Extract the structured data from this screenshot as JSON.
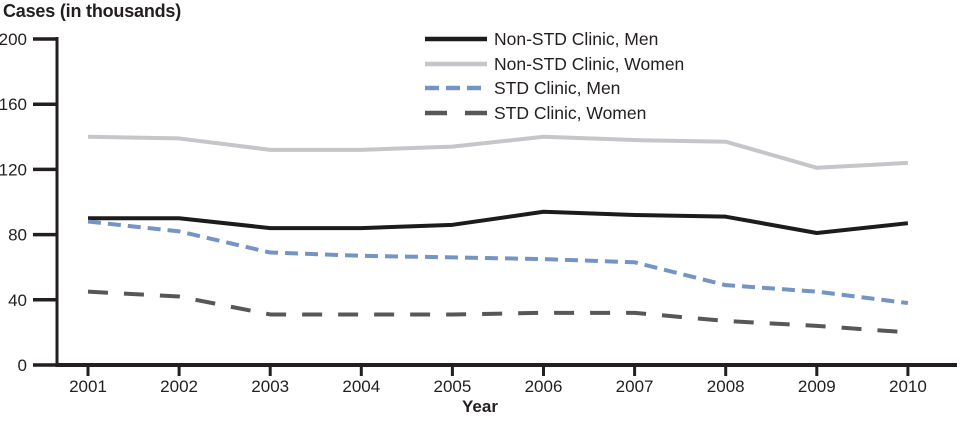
{
  "chart_data": {
    "type": "line",
    "title": "Cases (in thousands)",
    "xlabel": "Year",
    "ylabel": "Cases (in thousands)",
    "x": [
      "2001",
      "2002",
      "2003",
      "2004",
      "2005",
      "2006",
      "2007",
      "2008",
      "2009",
      "2010"
    ],
    "ylim": [
      0,
      200
    ],
    "yticks": [
      0,
      40,
      80,
      120,
      160,
      200
    ],
    "grid": false,
    "legend_position": "top-center-inside",
    "axis_color": "#231f20",
    "series": [
      {
        "name": "Non-STD Clinic, Men",
        "color": "#1c1c1e",
        "line_style": "solid",
        "values": [
          90,
          90,
          84,
          84,
          86,
          94,
          92,
          91,
          81,
          87
        ]
      },
      {
        "name": "Non-STD Clinic, Women",
        "color": "#c6c5c9",
        "line_style": "solid",
        "values": [
          140,
          139,
          132,
          132,
          134,
          140,
          138,
          137,
          121,
          124
        ]
      },
      {
        "name": "STD Clinic, Men",
        "color": "#7494c6",
        "line_style": "dashed",
        "values": [
          88,
          82,
          69,
          67,
          66,
          65,
          63,
          49,
          45,
          38
        ]
      },
      {
        "name": "STD Clinic, Women",
        "color": "#57575a",
        "line_style": "long-dashed",
        "values": [
          45,
          42,
          31,
          31,
          31,
          32,
          32,
          27,
          24,
          20
        ]
      }
    ]
  }
}
